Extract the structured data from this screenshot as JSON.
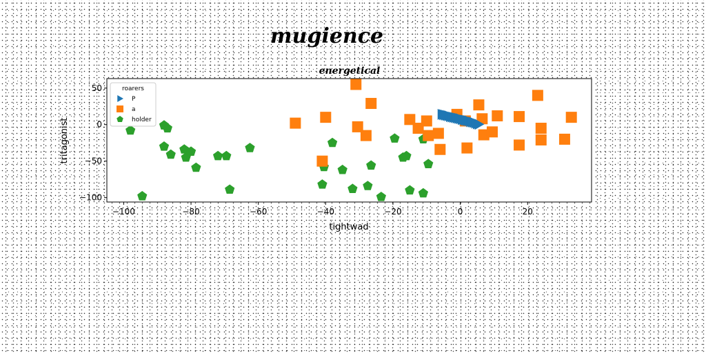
{
  "chart_data": {
    "type": "scatter",
    "suptitle": "mugience",
    "title": "energetical",
    "xlabel": "tightwad",
    "ylabel": "tritagonist",
    "xlim": [
      -105,
      39
    ],
    "ylim": [
      -106,
      63
    ],
    "xticks": [
      -100,
      -80,
      -60,
      -40,
      -20,
      0,
      20
    ],
    "yticks": [
      -100,
      -50,
      0,
      50
    ],
    "grid": false,
    "legend": {
      "title": "roarers",
      "placement": "top-left"
    },
    "series": [
      {
        "name": "P",
        "marker": "triangle-right",
        "color": "#1f77b4",
        "points": [
          [
            -5.5,
            14
          ],
          [
            -5,
            13.5
          ],
          [
            -4.5,
            13
          ],
          [
            -4,
            12.5
          ],
          [
            -3.5,
            12
          ],
          [
            -3,
            11
          ],
          [
            -2.5,
            10.5
          ],
          [
            -2,
            10
          ],
          [
            -1.5,
            9.5
          ],
          [
            -1,
            9
          ],
          [
            -0.5,
            8.5
          ],
          [
            0,
            8
          ],
          [
            0.5,
            7
          ],
          [
            1,
            6.5
          ],
          [
            1.5,
            6
          ],
          [
            2,
            5.5
          ],
          [
            2.5,
            5
          ],
          [
            3,
            4
          ],
          [
            3.5,
            3.5
          ],
          [
            4,
            3
          ],
          [
            4.5,
            2
          ],
          [
            5,
            1
          ],
          [
            5.5,
            0.5
          ]
        ]
      },
      {
        "name": "a",
        "marker": "square",
        "color": "#ff7f0e",
        "points": [
          [
            -49,
            2
          ],
          [
            -40,
            10
          ],
          [
            -41,
            -50
          ],
          [
            -31,
            55
          ],
          [
            -30.5,
            -3
          ],
          [
            -28,
            -15
          ],
          [
            -26.5,
            29
          ],
          [
            -15,
            7
          ],
          [
            -12.5,
            -5
          ],
          [
            -10,
            5
          ],
          [
            -9.5,
            -15
          ],
          [
            -6.5,
            -12
          ],
          [
            -6,
            -34
          ],
          [
            -1,
            14
          ],
          [
            1.5,
            5
          ],
          [
            2,
            -32
          ],
          [
            5.5,
            27
          ],
          [
            6.5,
            8
          ],
          [
            7,
            -14
          ],
          [
            9.5,
            -10
          ],
          [
            11,
            12
          ],
          [
            17.5,
            11
          ],
          [
            17.5,
            -28
          ],
          [
            23,
            40
          ],
          [
            24,
            -5
          ],
          [
            24,
            -21
          ],
          [
            31,
            -20
          ],
          [
            33,
            10
          ]
        ]
      },
      {
        "name": "holder",
        "marker": "pentagon",
        "color": "#2ca02c",
        "points": [
          [
            -98,
            -8
          ],
          [
            -94.5,
            -98
          ],
          [
            -88,
            -1
          ],
          [
            -87,
            -5
          ],
          [
            -88,
            -30
          ],
          [
            -86,
            -41
          ],
          [
            -82,
            -34
          ],
          [
            -81.5,
            -45
          ],
          [
            -80,
            -37
          ],
          [
            -78.5,
            -59
          ],
          [
            -72,
            -43
          ],
          [
            -69.5,
            -43
          ],
          [
            -68.5,
            -89
          ],
          [
            -62.5,
            -32
          ],
          [
            -41,
            -82
          ],
          [
            -40.5,
            -58
          ],
          [
            -38,
            -25
          ],
          [
            -35,
            -62
          ],
          [
            -32,
            -88
          ],
          [
            -27.5,
            -84
          ],
          [
            -26.5,
            -56
          ],
          [
            -23.5,
            -99
          ],
          [
            -19.5,
            -19
          ],
          [
            -17,
            -45
          ],
          [
            -16,
            -43
          ],
          [
            -15,
            -90
          ],
          [
            -11,
            -94
          ],
          [
            -11,
            -20
          ],
          [
            -9.5,
            -54
          ]
        ]
      }
    ]
  }
}
